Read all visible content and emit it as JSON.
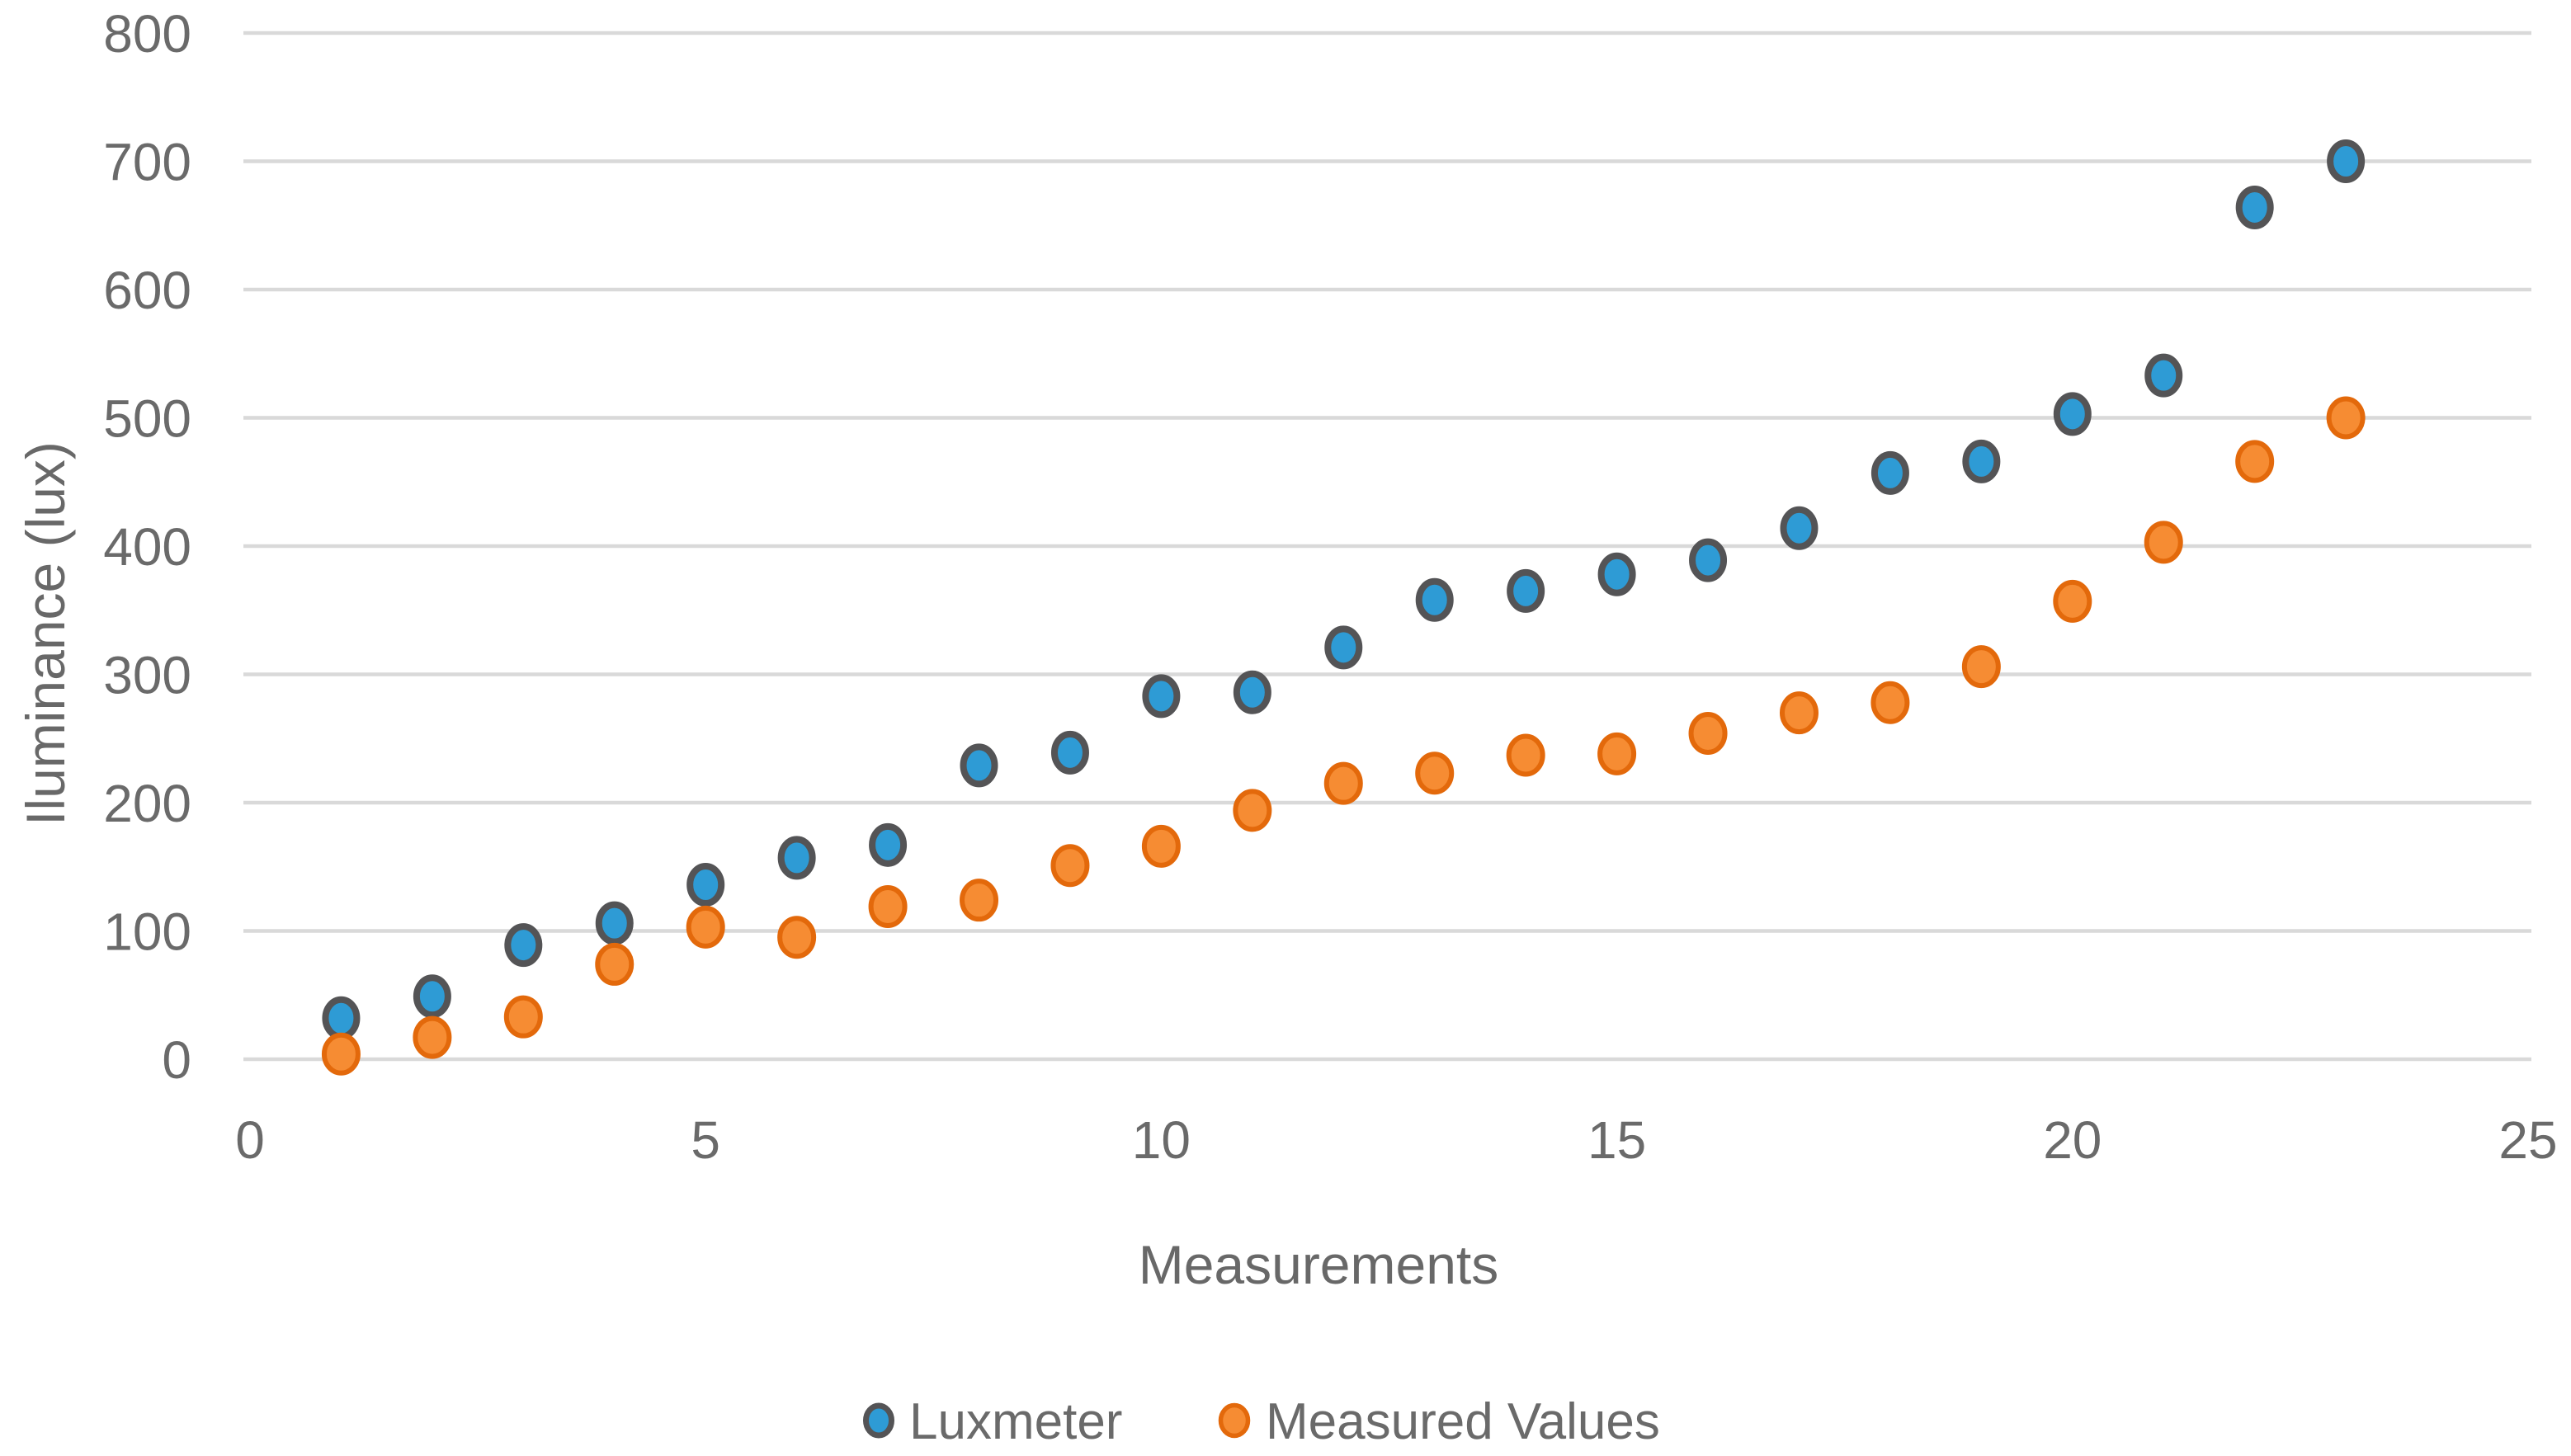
{
  "chart_data": {
    "type": "scatter",
    "title": "",
    "xlabel": "Measurements",
    "ylabel": "Iluminance (lux)",
    "xlim": [
      0,
      25
    ],
    "ylim": [
      0,
      800
    ],
    "x_ticks": [
      0,
      5,
      10,
      15,
      20,
      25
    ],
    "y_ticks": [
      0,
      100,
      200,
      300,
      400,
      500,
      600,
      700,
      800
    ],
    "grid": "horizontal-only",
    "legend_position": "bottom-center",
    "background": "#FFFFFF",
    "gridline_color": "#D9D9D9",
    "text_color": "#6A6A6A",
    "x": [
      1,
      2,
      3,
      4,
      5,
      6,
      7,
      8,
      9,
      10,
      11,
      12,
      13,
      14,
      15,
      16,
      17,
      18,
      19,
      20,
      21,
      22,
      23
    ],
    "series": [
      {
        "name": "Luxmeter",
        "marker": "circle-icon",
        "marker_fill": "#2E9BD5",
        "marker_border": "#545456",
        "values": [
          32,
          49,
          89,
          106,
          136,
          157,
          167,
          229,
          239,
          283,
          286,
          321,
          358,
          365,
          378,
          389,
          414,
          457,
          466,
          503,
          533,
          664,
          700
        ]
      },
      {
        "name": "Measured Values",
        "marker": "circle-icon",
        "marker_fill": "#F68C33",
        "marker_border": "#E3690B",
        "values": [
          4,
          17,
          33,
          74,
          103,
          95,
          119,
          124,
          151,
          166,
          194,
          215,
          223,
          237,
          238,
          254,
          270,
          278,
          306,
          357,
          403,
          466,
          500
        ]
      }
    ]
  }
}
